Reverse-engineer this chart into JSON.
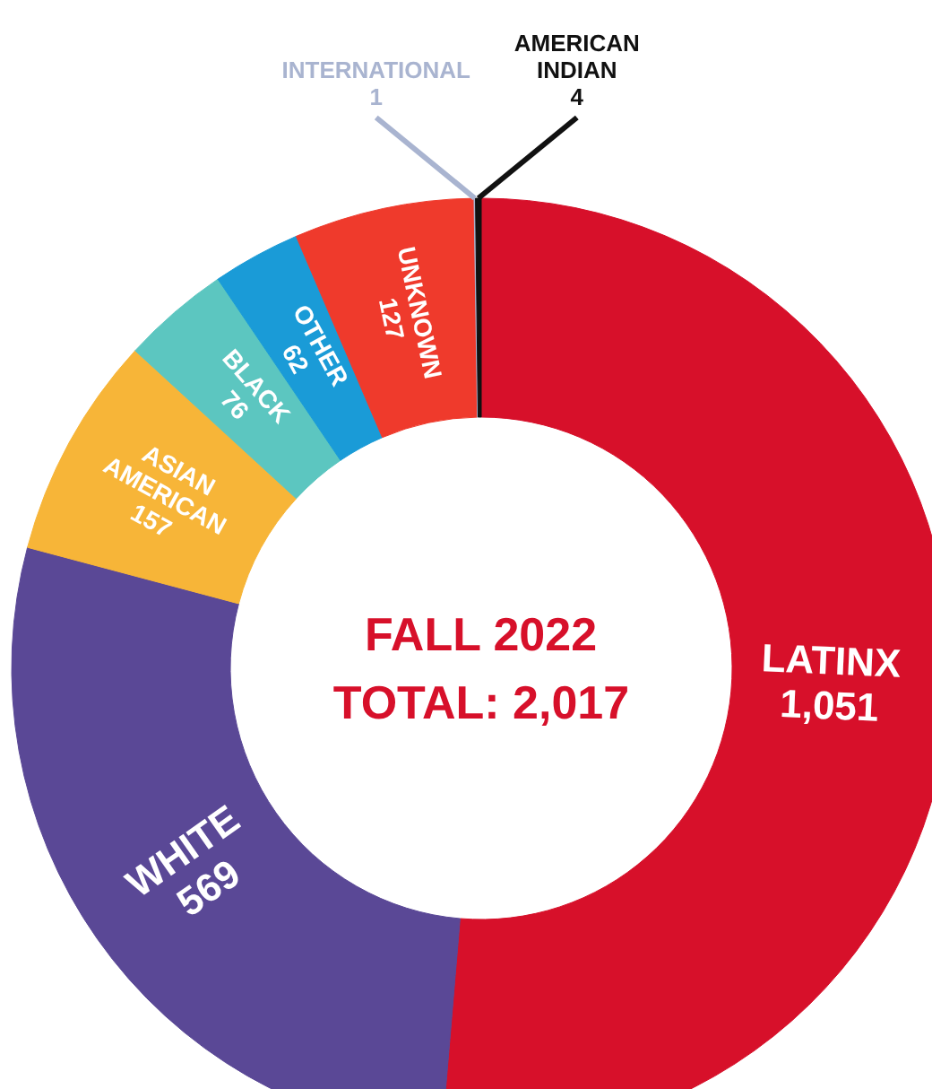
{
  "chart_data": {
    "type": "donut",
    "title": "FALL 2022",
    "subtitle": "TOTAL: 2,017",
    "categories": [
      "LATINX",
      "WHITE",
      "ASIAN AMERICAN",
      "BLACK",
      "OTHER",
      "UNKNOWN",
      "INTERNATIONAL",
      "AMERICAN INDIAN"
    ],
    "values": [
      1051,
      569,
      157,
      76,
      62,
      127,
      1,
      4
    ],
    "value_labels": [
      "1,051",
      "569",
      "157",
      "76",
      "62",
      "127",
      "1",
      "4"
    ],
    "colors": [
      "#d7102a",
      "#5a4896",
      "#f7b538",
      "#5cc6c0",
      "#1a9bd7",
      "#ef3a2c",
      "#a9b4d0",
      "#111111"
    ]
  }
}
